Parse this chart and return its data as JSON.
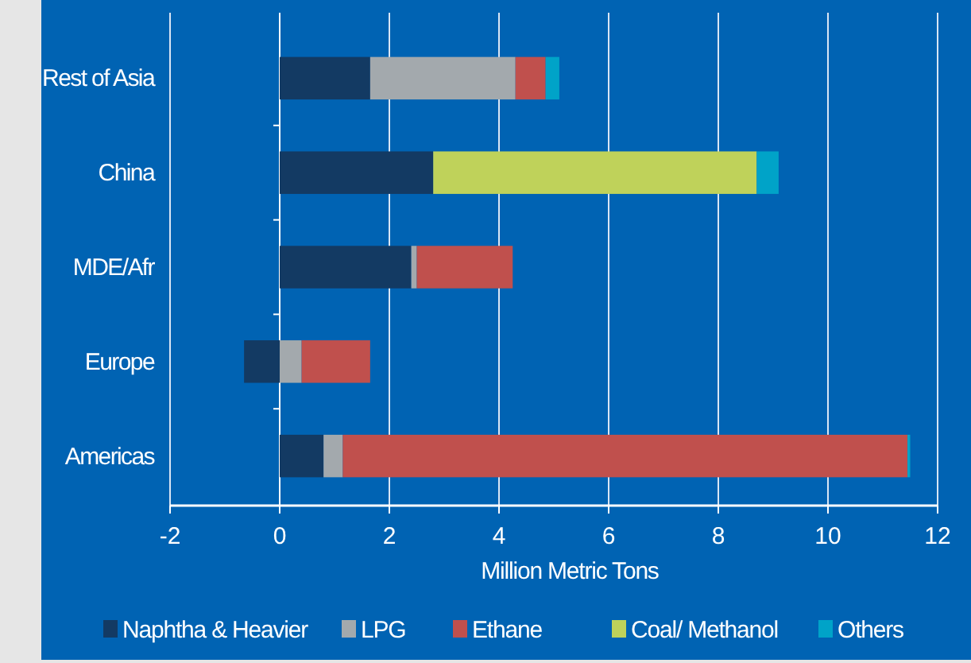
{
  "chart_data": {
    "type": "bar",
    "orientation": "horizontal",
    "stacked": true,
    "xlabel": "Million Metric Tons",
    "categories": [
      "Rest of Asia",
      "China",
      "MDE/Afr",
      "Europe",
      "Americas"
    ],
    "series": [
      {
        "name": "Naphtha & Heavier",
        "color": "#133a63",
        "values": [
          1.65,
          2.8,
          2.4,
          -0.65,
          0.8
        ]
      },
      {
        "name": "LPG",
        "color": "#a3a9ad",
        "values": [
          2.65,
          0,
          0.1,
          0.4,
          0.35
        ]
      },
      {
        "name": "Ethane",
        "color": "#c0504d",
        "values": [
          0.55,
          0,
          1.75,
          1.25,
          10.3
        ]
      },
      {
        "name": "Coal/ Methanol",
        "color": "#bfd25a",
        "values": [
          0,
          5.9,
          0,
          0,
          0
        ]
      },
      {
        "name": "Others",
        "color": "#00a3c8",
        "values": [
          0.25,
          0.4,
          0,
          0,
          0.05
        ]
      }
    ],
    "xlim": [
      -2,
      12
    ],
    "xticks": [
      -2,
      0,
      2,
      4,
      6,
      8,
      10,
      12
    ],
    "grid": "x",
    "legend": "bottom"
  }
}
